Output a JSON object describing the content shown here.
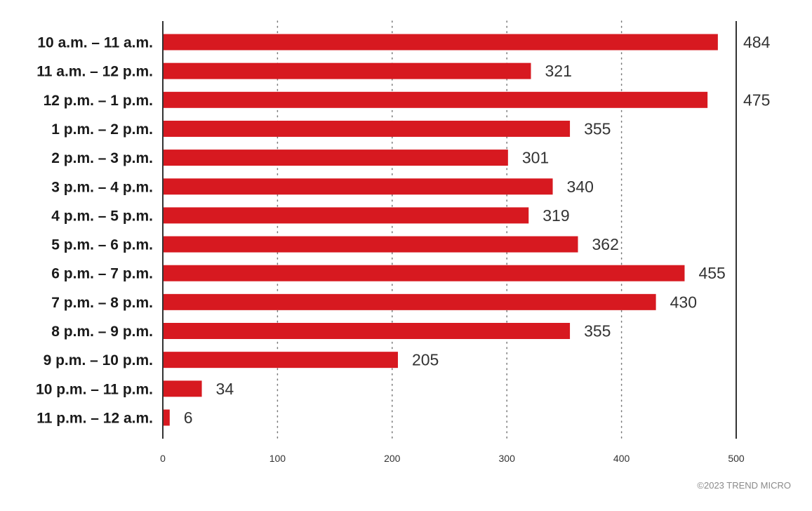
{
  "chart_data": {
    "type": "bar",
    "orientation": "horizontal",
    "categories": [
      "10 a.m. – 11 a.m.",
      "11 a.m. – 12 p.m.",
      "12 p.m. – 1  p.m.",
      "1 p.m. – 2 p.m.",
      "2 p.m. – 3 p.m.",
      "3 p.m. – 4 p.m.",
      "4 p.m. – 5 p.m.",
      "5 p.m. – 6  p.m.",
      "6 p.m. – 7 p.m.",
      "7 p.m. – 8 p.m.",
      "8 p.m. – 9 p.m.",
      "9 p.m. – 10 p.m.",
      "10 p.m. – 11 p.m.",
      "11 p.m. – 12 a.m."
    ],
    "values": [
      484,
      321,
      475,
      355,
      301,
      340,
      319,
      362,
      455,
      430,
      355,
      205,
      34,
      6
    ],
    "xlim": [
      0,
      500
    ],
    "xticks": [
      0,
      100,
      200,
      300,
      400,
      500
    ],
    "grid": "dotted vertical",
    "bar_color": "#d71920",
    "title": "",
    "xlabel": "",
    "ylabel": ""
  },
  "footer": {
    "copyright": "©2023 TREND MICRO"
  }
}
